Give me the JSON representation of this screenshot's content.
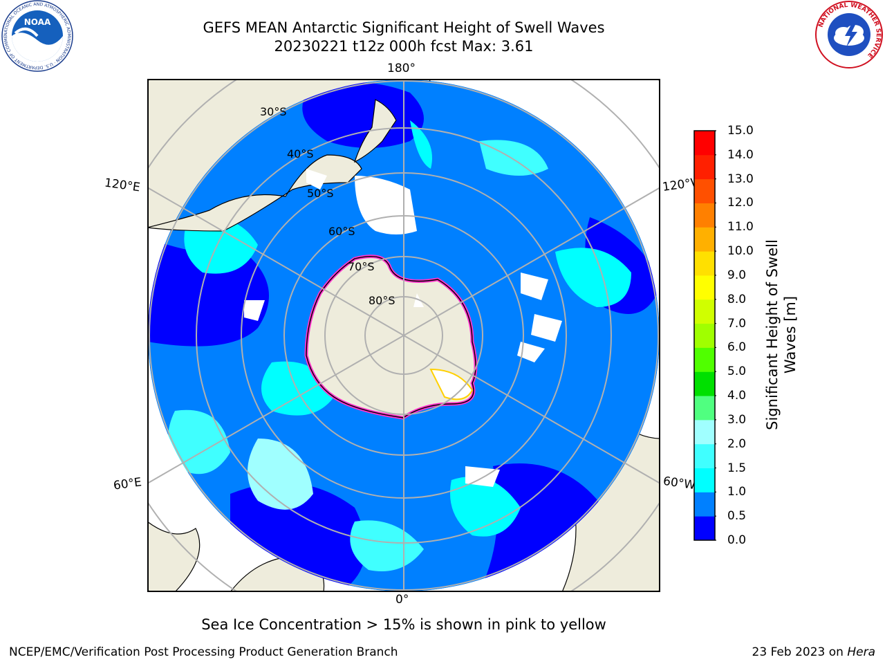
{
  "header": {
    "title_line1": "GEFS MEAN Antarctic Significant Height of Swell Waves",
    "title_line2": "20230221 t12z 000h fcst   Max: 3.61"
  },
  "logos": {
    "noaa_text": "NOAA",
    "noaa_ring_text": "NATIONAL OCEANIC AND ATMOSPHERIC ADMINISTRATION · U.S. DEPARTMENT OF COMMERCE",
    "nws_ring_text": "NATIONAL WEATHER SERVICE"
  },
  "map": {
    "projection": "south-polar-stereographic",
    "longitude_labels": {
      "top": "180°",
      "left": "120°E",
      "right": "120°W",
      "bottom_left": "60°E",
      "bottom_right": "60°W",
      "bottom": "0°"
    },
    "latitude_labels": [
      "30°S",
      "40°S",
      "50°S",
      "60°S",
      "70°S",
      "80°S"
    ],
    "colors": {
      "ocean_deep": "#0000ff",
      "ocean_mid": "#0080ff",
      "ocean_light": "#00ffff",
      "ocean_pale": "#80ffff",
      "land": "#eeecdc",
      "sea_ice_edge": "#ff33cc",
      "grid": "#b0b0b0"
    }
  },
  "colorbar": {
    "label": "Significant Height of Swell Waves [m]",
    "ticks": [
      "0.0",
      "0.5",
      "1.0",
      "1.5",
      "2.0",
      "3.0",
      "4.0",
      "5.0",
      "6.0",
      "7.0",
      "8.0",
      "9.0",
      "10.0",
      "11.0",
      "12.0",
      "13.0",
      "14.0",
      "15.0"
    ],
    "colors": [
      "#0000ff",
      "#0080ff",
      "#00ffff",
      "#40ffff",
      "#a0ffff",
      "#50ff80",
      "#00e000",
      "#50ff00",
      "#a0ff00",
      "#d0ff00",
      "#ffff00",
      "#ffe000",
      "#ffb000",
      "#ff8000",
      "#ff5000",
      "#ff2000",
      "#ff0000"
    ]
  },
  "footer": {
    "note": "Sea Ice Concentration > 15% is shown in pink to yellow",
    "credit_left": "NCEP/EMC/Verification Post Processing Product Generation Branch",
    "date": "23 Feb 2023",
    "on": "on",
    "machine": "Hera"
  }
}
